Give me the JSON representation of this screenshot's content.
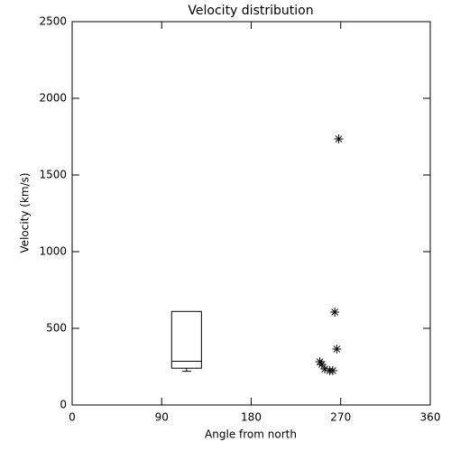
{
  "chart_data": {
    "type": "scatter",
    "title": "Velocity distribution",
    "x_label": "Angle from north",
    "y_label": "Velocity (km/s)",
    "xlim": [
      0,
      360
    ],
    "xticks": [
      0,
      90,
      180,
      270,
      360
    ],
    "ylim": [
      0,
      2500
    ],
    "yticks": [
      0,
      500,
      1000,
      1500,
      2000,
      2500
    ],
    "color": "#000000",
    "x": [
      268,
      264,
      266,
      249,
      251,
      254,
      259,
      262
    ],
    "values": [
      1735,
      606,
      365,
      282,
      265,
      235,
      224,
      224
    ],
    "box": {
      "x_range": [
        100,
        130
      ],
      "min": 220,
      "q1": 240,
      "median": 285,
      "q3": 610,
      "max": 610
    }
  }
}
